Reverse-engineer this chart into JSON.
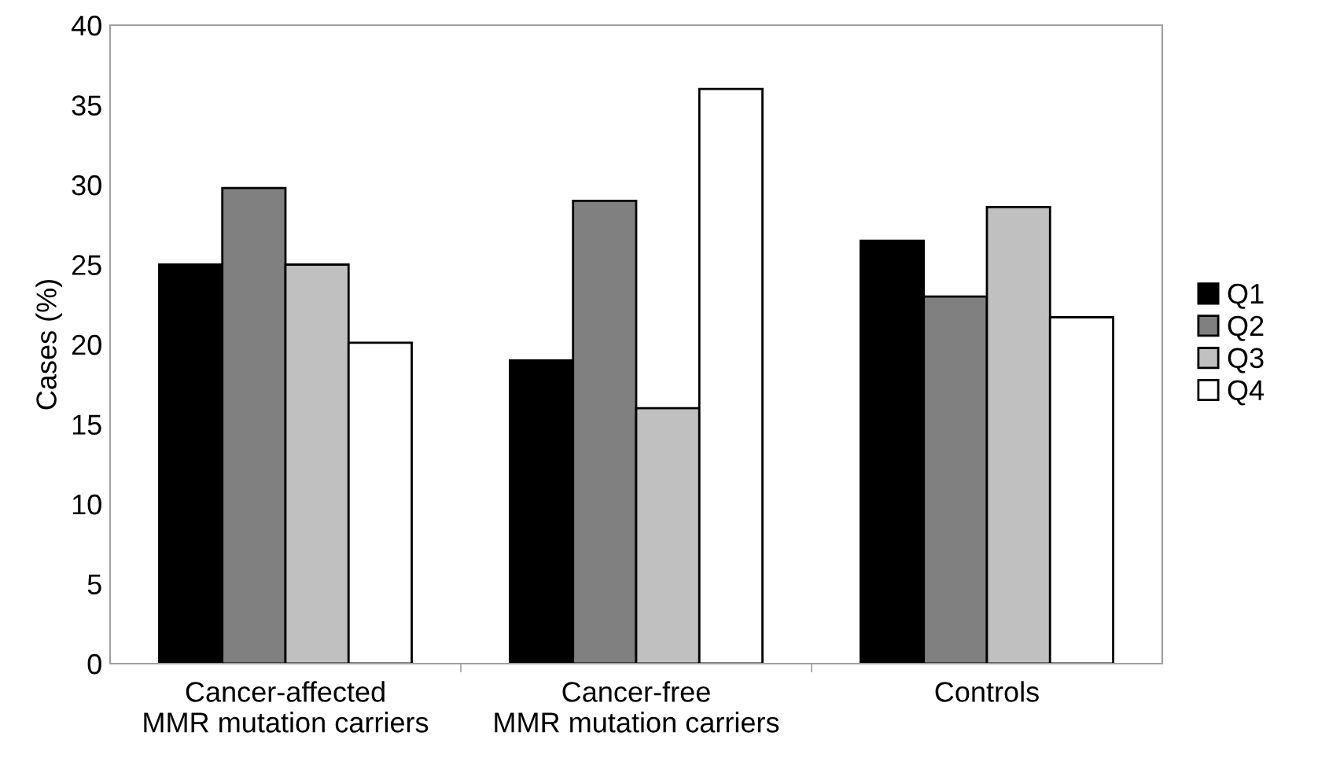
{
  "chart_data": {
    "type": "bar",
    "ylabel": "Cases (%)",
    "categories": [
      "Cancer-affected\nMMR mutation carriers",
      "Cancer-free\nMMR mutation carriers",
      "Controls"
    ],
    "series": [
      {
        "name": "Q1",
        "color": "#000000",
        "values": [
          25.0,
          19.0,
          26.5
        ]
      },
      {
        "name": "Q2",
        "color": "#808080",
        "values": [
          29.8,
          29.0,
          23.0
        ]
      },
      {
        "name": "Q3",
        "color": "#c0c0c0",
        "values": [
          25.0,
          16.0,
          28.6
        ]
      },
      {
        "name": "Q4",
        "color": "#ffffff",
        "values": [
          20.1,
          36.0,
          21.7
        ]
      }
    ],
    "ylim": [
      0,
      40
    ],
    "yticks": [
      0,
      5,
      10,
      15,
      20,
      25,
      30,
      35,
      40
    ],
    "grid": false,
    "legend": "right"
  }
}
